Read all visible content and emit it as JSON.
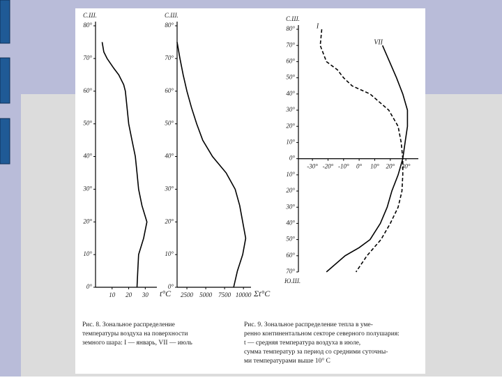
{
  "chart_data": [
    {
      "type": "line",
      "top_label": "С.Ш.",
      "xlabel": "t°C",
      "xlim": [
        0,
        37
      ],
      "ylim": [
        0,
        80
      ],
      "xticks": [
        10,
        20,
        30
      ],
      "yticks": [
        {
          "value": 0,
          "label": "0°"
        },
        {
          "value": 10,
          "label": "10°"
        },
        {
          "value": 20,
          "label": "20°"
        },
        {
          "value": 30,
          "label": "30°"
        },
        {
          "value": 40,
          "label": "40°"
        },
        {
          "value": 50,
          "label": "50°"
        },
        {
          "value": 60,
          "label": "60°"
        },
        {
          "value": 70,
          "label": "70°"
        },
        {
          "value": 80,
          "label": "80°"
        }
      ],
      "series": [
        {
          "color": "#000000",
          "dashed": false,
          "y": [
            75,
            72,
            70,
            67,
            65,
            62,
            60,
            55,
            50,
            45,
            40,
            35,
            30,
            25,
            20,
            15,
            10,
            5,
            0
          ],
          "values": [
            4,
            5,
            7,
            11,
            14,
            17,
            18,
            19,
            20,
            22,
            24,
            25,
            26,
            28,
            31,
            29,
            26,
            25.5,
            25
          ]
        }
      ]
    },
    {
      "type": "line",
      "top_label": "С.Ш.",
      "xlabel": "Σt°C",
      "xlim": [
        1200,
        11000
      ],
      "ylim": [
        0,
        80
      ],
      "xticks": [
        2500,
        5000,
        7500,
        10000
      ],
      "yticks": [
        {
          "value": 0,
          "label": "0°"
        },
        {
          "value": 10,
          "label": "10°"
        },
        {
          "value": 20,
          "label": "20°"
        },
        {
          "value": 30,
          "label": "30°"
        },
        {
          "value": 40,
          "label": "40°"
        },
        {
          "value": 50,
          "label": "50°"
        },
        {
          "value": 60,
          "label": "60°"
        },
        {
          "value": 70,
          "label": "70°"
        },
        {
          "value": 80,
          "label": "80°"
        }
      ],
      "series": [
        {
          "color": "#000000",
          "dashed": false,
          "y": [
            75,
            70,
            65,
            60,
            55,
            50,
            45,
            40,
            35,
            30,
            25,
            20,
            15,
            10,
            5,
            0
          ],
          "values": [
            1200,
            1580,
            2000,
            2500,
            3100,
            3800,
            4600,
            5900,
            7700,
            8900,
            9500,
            9900,
            10300,
            9900,
            9200,
            8700
          ]
        }
      ]
    },
    {
      "type": "line",
      "top_label": "С.Ш.",
      "bottom_label": "Ю.Ш.",
      "xlim": [
        -39,
        38
      ],
      "ylim": [
        -70,
        80
      ],
      "xticks": [
        {
          "value": -30,
          "label": "-30°"
        },
        {
          "value": -20,
          "label": "-20°"
        },
        {
          "value": -10,
          "label": "-10°"
        },
        {
          "value": 0,
          "label": "0°"
        },
        {
          "value": 10,
          "label": "10°"
        },
        {
          "value": 20,
          "label": "20°"
        },
        {
          "value": 30,
          "label": "30°"
        }
      ],
      "yticks": [
        {
          "value": 80,
          "label": "80°"
        },
        {
          "value": 70,
          "label": "70°"
        },
        {
          "value": 60,
          "label": "60°"
        },
        {
          "value": 50,
          "label": "50°"
        },
        {
          "value": 40,
          "label": "40°"
        },
        {
          "value": 30,
          "label": "30°"
        },
        {
          "value": 20,
          "label": "20°"
        },
        {
          "value": 10,
          "label": "10°"
        },
        {
          "value": 0,
          "label": "0°"
        },
        {
          "value": -10,
          "label": "10°"
        },
        {
          "value": -20,
          "label": "20°"
        },
        {
          "value": -30,
          "label": "30°"
        },
        {
          "value": -40,
          "label": "40°"
        },
        {
          "value": -50,
          "label": "50°"
        },
        {
          "value": -60,
          "label": "60°"
        },
        {
          "value": -70,
          "label": "70°"
        }
      ],
      "series": [
        {
          "name": "I",
          "color": "#000000",
          "dashed": true,
          "y": [
            80,
            70,
            60,
            55,
            50,
            45,
            40,
            30,
            20,
            10,
            0,
            -10,
            -20,
            -30,
            -40,
            -50,
            -60,
            -70
          ],
          "values": [
            -24,
            -25,
            -21,
            -14,
            -10,
            -4.5,
            7,
            19,
            25,
            27,
            28,
            28,
            27.5,
            25,
            20,
            14,
            5,
            -2
          ]
        },
        {
          "name": "VII",
          "color": "#000000",
          "dashed": false,
          "y": [
            70,
            60,
            50,
            40,
            30,
            20,
            10,
            0,
            -10,
            -20,
            -30,
            -40,
            -50,
            -55,
            -60,
            -70
          ],
          "values": [
            15,
            19.5,
            24,
            28,
            31,
            31,
            29.5,
            28,
            25,
            21,
            18,
            13.6,
            7,
            0,
            -9,
            -21
          ]
        }
      ]
    }
  ],
  "captions": [
    {
      "lines": [
        "Рис. 8. Зональное распределение",
        "температуры воздуха на поверхности",
        "земного шара: I — январь, VII — июль"
      ]
    },
    {
      "lines": [
        "Рис. 9. Зональное распределение тепла в уме-",
        "ренно континентальном секторе северного полушария:",
        "t — средняя температура воздуха в июле,",
        "сумма температур за период со средними суточны-",
        "ми температурами выше 10° С"
      ]
    }
  ]
}
